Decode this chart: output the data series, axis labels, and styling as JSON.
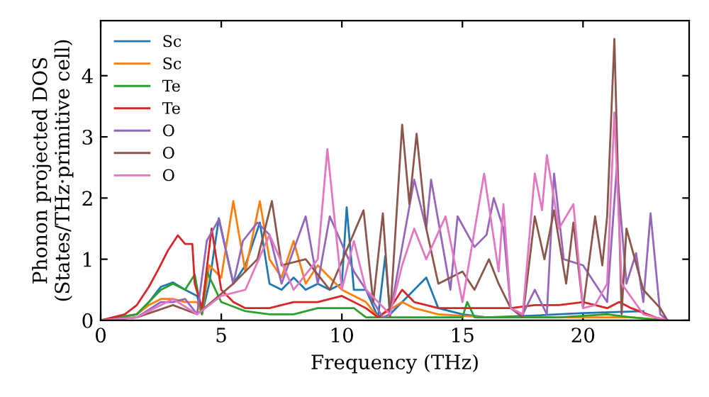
{
  "chart_data": {
    "type": "line",
    "xlabel": "Frequency (THz)",
    "ylabel": "Phonon projected DOS\n(States/THz·primitive cell)",
    "xlim": [
      0,
      24.4
    ],
    "ylim": [
      0,
      4.9
    ],
    "xticks": [
      0,
      5,
      10,
      15,
      20
    ],
    "yticks": [
      0,
      1,
      2,
      3,
      4
    ],
    "grid": false,
    "legend": "top left",
    "marker": "none",
    "line_style": "solid",
    "series": [
      {
        "name": "Sc",
        "color": "#1f77b4",
        "x": [
          0,
          1.5,
          2,
          2.5,
          3,
          3.5,
          4,
          4.2,
          4.5,
          4.9,
          5.5,
          6,
          6.6,
          7,
          7.5,
          8,
          8.5,
          9,
          9.5,
          10,
          10.2,
          10.5,
          11,
          11.5,
          11.8,
          12,
          12.5,
          13,
          13.5,
          14,
          15,
          16,
          18,
          20,
          22.5
        ],
        "values": [
          0,
          0.1,
          0.3,
          0.55,
          0.62,
          0.5,
          0.4,
          0.1,
          0.6,
          1.67,
          0.6,
          0.9,
          1.6,
          0.6,
          0.5,
          0.7,
          0.5,
          0.6,
          0.5,
          0.6,
          1.85,
          0.5,
          0.5,
          0.05,
          1.05,
          0.1,
          0.3,
          0.5,
          0.7,
          0.2,
          0.1,
          0.05,
          0.08,
          0.12,
          0.15
        ]
      },
      {
        "name": "Sc",
        "color": "#ff7f0e",
        "x": [
          0,
          1.5,
          2,
          2.5,
          3,
          3.5,
          4,
          4.2,
          4.5,
          5,
          5.5,
          6,
          6.6,
          7,
          7.5,
          8,
          8.5,
          9,
          9.5,
          10,
          11,
          11.5,
          12.5,
          13,
          14,
          16,
          18,
          20,
          22,
          23.5
        ],
        "values": [
          0,
          0.1,
          0.25,
          0.35,
          0.35,
          0.3,
          0.3,
          0.1,
          0.9,
          0.7,
          1.95,
          0.8,
          1.95,
          1.0,
          0.7,
          1.3,
          0.6,
          0.9,
          0.7,
          0.5,
          0.3,
          0.05,
          0.3,
          0.2,
          0.1,
          0.05,
          0.05,
          0.05,
          0.05,
          0
        ]
      },
      {
        "name": "Te",
        "color": "#2ca02c",
        "x": [
          0,
          1.5,
          2,
          2.5,
          3,
          3.5,
          3.9,
          4.2,
          4.4,
          5,
          6,
          7,
          8,
          9,
          10.5,
          11,
          12,
          13,
          14,
          15,
          15.2,
          15.5,
          17,
          19,
          21,
          22,
          23.5
        ],
        "values": [
          0,
          0.1,
          0.3,
          0.5,
          0.6,
          0.5,
          0.75,
          0.1,
          0.8,
          0.3,
          0.15,
          0.1,
          0.1,
          0.2,
          0.2,
          0.05,
          0.05,
          0.05,
          0.05,
          0.05,
          0.3,
          0.05,
          0.05,
          0.05,
          0.1,
          0.05,
          0
        ]
      },
      {
        "name": "Te",
        "color": "#d62728",
        "x": [
          0,
          1,
          1.5,
          2,
          2.4,
          2.8,
          3.2,
          3.5,
          3.8,
          3.9,
          4.2,
          4.6,
          5,
          5.5,
          6,
          7,
          8,
          9,
          10,
          11,
          11.5,
          12,
          12.5,
          13,
          14,
          15,
          16,
          17,
          18,
          19,
          20,
          21,
          21.5,
          22,
          23,
          23.5
        ],
        "values": [
          0,
          0.1,
          0.25,
          0.55,
          0.84,
          1.15,
          1.39,
          1.25,
          1.25,
          0.6,
          0.2,
          1.5,
          0.5,
          0.3,
          0.2,
          0.2,
          0.3,
          0.3,
          0.4,
          0.2,
          0.05,
          0.2,
          0.5,
          0.3,
          0.2,
          0.2,
          0.2,
          0.2,
          0.25,
          0.25,
          0.3,
          0.2,
          0.3,
          0.2,
          0.05,
          0
        ]
      },
      {
        "name": "O",
        "color": "#9467bd",
        "x": [
          0,
          1.5,
          2.5,
          3,
          3.5,
          4,
          4.4,
          4.9,
          5.5,
          5.9,
          6.5,
          7,
          7.5,
          8.5,
          9,
          9.5,
          10.5,
          11,
          11.7,
          12,
          12.5,
          13,
          13.5,
          13.7,
          14.5,
          14.8,
          15.5,
          16,
          16.3,
          16.7,
          17,
          17.5,
          18,
          18.5,
          18.8,
          19.2,
          20,
          20.5,
          21,
          21.4,
          21.8,
          22.2,
          22.5,
          22.8,
          23.2,
          23.5
        ],
        "values": [
          0,
          0.05,
          0.3,
          0.3,
          0.35,
          0.1,
          1.3,
          1.65,
          0.6,
          1.3,
          1.6,
          1.4,
          0.6,
          1.7,
          0.6,
          1.7,
          0.8,
          0.5,
          0.05,
          0.1,
          1.2,
          2.3,
          1.5,
          2.3,
          0.5,
          1.7,
          1.2,
          1.4,
          2.0,
          1.5,
          0.2,
          0.1,
          0.5,
          0.1,
          2.4,
          1.0,
          0.9,
          0.6,
          0.3,
          2.5,
          0.6,
          1.1,
          0.3,
          1.75,
          0.1,
          0
        ]
      },
      {
        "name": "O",
        "color": "#8c564b",
        "x": [
          0,
          1.5,
          3,
          4,
          5.5,
          6.5,
          7.1,
          7.5,
          8.5,
          9.5,
          10.9,
          11.3,
          11.7,
          12,
          12.5,
          12.8,
          13.1,
          13.5,
          14,
          15,
          15.5,
          16.1,
          16.5,
          17,
          17.5,
          18,
          18.4,
          18.8,
          19.3,
          19.6,
          20,
          20.5,
          20.8,
          21,
          21.3,
          21.6,
          21.8,
          22.5,
          23.2,
          23.5
        ],
        "values": [
          0,
          0.05,
          0.25,
          0.1,
          0.6,
          1.0,
          1.95,
          0.9,
          1.0,
          0.5,
          1.8,
          0.3,
          1.75,
          0.05,
          3.2,
          1.9,
          3.05,
          1.5,
          0.6,
          0.8,
          0.5,
          1.0,
          0.6,
          0.2,
          0.05,
          1.7,
          1.0,
          1.8,
          0.6,
          1.6,
          0.2,
          1.7,
          0.9,
          1.7,
          4.6,
          0.1,
          1.5,
          0.5,
          0.2,
          0
        ]
      },
      {
        "name": "O",
        "color": "#e377c2",
        "x": [
          0,
          1.5,
          3,
          4,
          5,
          6,
          7,
          8,
          9,
          9.4,
          10,
          10.5,
          11,
          12,
          12.5,
          13,
          13.5,
          14.3,
          15,
          15.9,
          16.5,
          16.7,
          17,
          17.5,
          18,
          18.3,
          18.5,
          19,
          19.6,
          20,
          20.5,
          21,
          21.3,
          21.6,
          22.5,
          23.5
        ],
        "values": [
          0,
          0.05,
          0.35,
          0.1,
          0.4,
          0.5,
          1.4,
          0.5,
          1.0,
          2.8,
          0.5,
          1.3,
          0.5,
          0.1,
          0.9,
          1.5,
          1.0,
          1.7,
          0.3,
          2.4,
          0.8,
          1.9,
          0.2,
          0.1,
          2.4,
          1.8,
          2.7,
          1.5,
          1.9,
          0.2,
          0.25,
          0.6,
          3.4,
          0.6,
          0.1,
          0
        ]
      }
    ]
  }
}
